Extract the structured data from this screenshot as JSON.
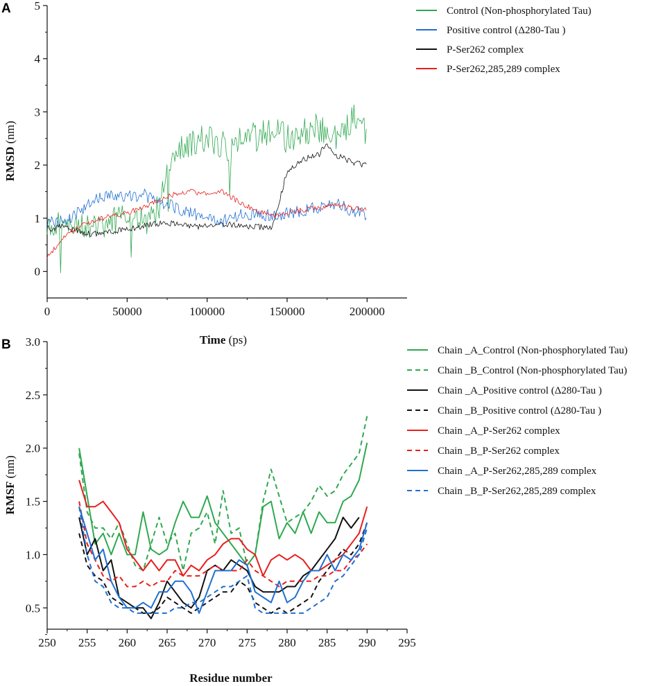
{
  "chart_data": [
    {
      "panel": "A",
      "type": "line",
      "xlabel_bold": "Time",
      "xlabel_unit": " (ps)",
      "ylabel_bold": "RMSD",
      "ylabel_unit": " (nm)",
      "xlim": [
        0,
        225000
      ],
      "ylim": [
        -0.5,
        5
      ],
      "xticks": [
        0,
        50000,
        100000,
        150000,
        200000
      ],
      "yticks": [
        0,
        1,
        2,
        3,
        4,
        5
      ],
      "series": [
        {
          "name": "Control (Non-phosphorylated Tau)",
          "color": "#2fa84f",
          "style": "solid",
          "x": [
            0,
            5000,
            10000,
            20000,
            30000,
            40000,
            50000,
            60000,
            65000,
            70000,
            75000,
            80000,
            90000,
            100000,
            110000,
            115000,
            120000,
            125000,
            130000,
            140000,
            150000,
            160000,
            170000,
            180000,
            190000,
            195000,
            200000
          ],
          "y": [
            0.9,
            0.95,
            1.0,
            0.9,
            0.85,
            0.95,
            1.05,
            0.95,
            1.0,
            1.2,
            2.0,
            2.2,
            2.4,
            2.5,
            2.4,
            2.2,
            2.6,
            2.7,
            2.5,
            2.7,
            2.5,
            2.6,
            2.7,
            2.5,
            2.8,
            3.0,
            2.5
          ]
        },
        {
          "name": "Positive control (Δ280-Tau )",
          "color": "#1f6fd1",
          "style": "solid",
          "x": [
            0,
            10000,
            20000,
            30000,
            40000,
            50000,
            60000,
            70000,
            80000,
            90000,
            100000,
            110000,
            120000,
            130000,
            140000,
            150000,
            160000,
            170000,
            180000,
            190000,
            200000
          ],
          "y": [
            0.9,
            0.95,
            1.1,
            1.35,
            1.45,
            1.4,
            1.45,
            1.3,
            1.2,
            1.1,
            1.0,
            0.95,
            1.05,
            1.1,
            1.05,
            1.1,
            1.15,
            1.2,
            1.3,
            1.15,
            1.05
          ]
        },
        {
          "name": "P-Ser262 complex",
          "color": "#111111",
          "style": "solid",
          "x": [
            0,
            10000,
            20000,
            30000,
            40000,
            50000,
            60000,
            70000,
            80000,
            90000,
            100000,
            110000,
            120000,
            130000,
            140000,
            145000,
            150000,
            160000,
            170000,
            175000,
            180000,
            190000,
            200000
          ],
          "y": [
            0.8,
            0.85,
            0.75,
            0.7,
            0.75,
            0.8,
            0.85,
            0.9,
            0.9,
            0.85,
            0.85,
            0.9,
            0.85,
            0.85,
            0.8,
            1.3,
            1.9,
            2.1,
            2.2,
            2.4,
            2.2,
            2.05,
            2.0
          ]
        },
        {
          "name": "P-Ser262,285,289 complex",
          "color": "#e81e1e",
          "style": "solid",
          "x": [
            0,
            5000,
            10000,
            20000,
            30000,
            40000,
            50000,
            60000,
            70000,
            80000,
            90000,
            100000,
            110000,
            120000,
            130000,
            140000,
            150000,
            160000,
            170000,
            180000,
            190000,
            200000
          ],
          "y": [
            0.25,
            0.45,
            0.65,
            0.85,
            0.95,
            1.05,
            1.1,
            1.2,
            1.35,
            1.45,
            1.5,
            1.45,
            1.5,
            1.3,
            1.15,
            1.05,
            1.1,
            1.15,
            1.2,
            1.25,
            1.2,
            1.15
          ]
        }
      ]
    },
    {
      "panel": "B",
      "type": "line",
      "xlabel": "Residue number",
      "ylabel_bold": "RMSF",
      "ylabel_unit": " (nm)",
      "xlim": [
        250,
        295
      ],
      "ylim": [
        0.3,
        3.0
      ],
      "xticks": [
        250,
        255,
        260,
        265,
        270,
        275,
        280,
        285,
        290,
        295
      ],
      "yticks": [
        0.5,
        1.0,
        1.5,
        2.0,
        2.5,
        3.0
      ],
      "ytick_labels": [
        "0.5",
        "1.0",
        "1.5",
        "2.0",
        "2.5",
        "3.0"
      ],
      "series": [
        {
          "name": "Chain _A_Control (Non-phosphorylated Tau)",
          "color": "#2fa84f",
          "style": "solid",
          "x": [
            254,
            255,
            256,
            257,
            258,
            259,
            260,
            261,
            262,
            263,
            264,
            265,
            266,
            267,
            268,
            269,
            270,
            271,
            272,
            273,
            274,
            275,
            276,
            277,
            278,
            279,
            280,
            281,
            282,
            283,
            284,
            285,
            286,
            287,
            288,
            289,
            290
          ],
          "y": [
            2.0,
            1.55,
            1.1,
            1.2,
            1.0,
            1.2,
            1.0,
            1.0,
            1.4,
            1.05,
            1.0,
            1.05,
            1.3,
            1.5,
            1.35,
            1.35,
            1.55,
            1.3,
            1.2,
            1.1,
            1.0,
            0.9,
            1.0,
            1.45,
            1.5,
            1.15,
            1.3,
            1.2,
            1.4,
            1.2,
            1.4,
            1.3,
            1.3,
            1.5,
            1.55,
            1.7,
            2.05
          ]
        },
        {
          "name": "Chain _B_Control (Non-phosphorylated Tau)",
          "color": "#2fa84f",
          "style": "dashed",
          "x": [
            254,
            255,
            256,
            257,
            258,
            259,
            260,
            261,
            262,
            263,
            264,
            265,
            266,
            267,
            268,
            269,
            270,
            271,
            272,
            273,
            274,
            275,
            276,
            277,
            278,
            279,
            280,
            281,
            282,
            283,
            284,
            285,
            286,
            287,
            288,
            289,
            290
          ],
          "y": [
            1.95,
            1.4,
            1.25,
            1.25,
            1.15,
            1.3,
            1.1,
            0.9,
            0.85,
            1.1,
            1.35,
            1.1,
            1.2,
            0.85,
            1.2,
            1.25,
            1.4,
            1.1,
            1.6,
            1.2,
            1.25,
            0.9,
            1.0,
            1.5,
            1.8,
            1.55,
            1.3,
            1.35,
            1.4,
            1.5,
            1.65,
            1.55,
            1.6,
            1.75,
            1.85,
            1.95,
            2.3
          ]
        },
        {
          "name": "Chain _A_Positive control (Δ280-Tau )",
          "color": "#111111",
          "style": "solid",
          "x": [
            254,
            255,
            256,
            257,
            258,
            259,
            260,
            261,
            262,
            263,
            264,
            265,
            266,
            267,
            268,
            269,
            270,
            271,
            272,
            273,
            274,
            275,
            276,
            277,
            278,
            279,
            280,
            281,
            282,
            283,
            284,
            285,
            286,
            287,
            288,
            289
          ],
          "y": [
            1.35,
            1.0,
            1.15,
            0.85,
            0.95,
            0.6,
            0.55,
            0.5,
            0.5,
            0.4,
            0.55,
            0.75,
            0.65,
            0.55,
            0.5,
            0.6,
            0.85,
            0.9,
            0.85,
            0.95,
            0.9,
            0.85,
            0.7,
            0.65,
            0.65,
            0.65,
            0.7,
            0.7,
            0.8,
            0.85,
            0.95,
            1.05,
            1.15,
            1.35,
            1.25,
            1.35
          ]
        },
        {
          "name": "Chain _B_Positive control (Δ280-Tau )",
          "color": "#111111",
          "style": "dashed",
          "x": [
            254,
            255,
            256,
            257,
            258,
            259,
            260,
            261,
            262,
            263,
            264,
            265,
            266,
            267,
            268,
            269,
            270,
            271,
            272,
            273,
            274,
            275,
            276,
            277,
            278,
            279,
            280,
            281,
            282,
            283,
            284,
            285,
            286,
            287,
            288,
            289,
            290
          ],
          "y": [
            1.2,
            0.9,
            0.8,
            0.75,
            0.6,
            0.55,
            0.5,
            0.5,
            0.45,
            0.45,
            0.5,
            0.6,
            0.55,
            0.5,
            0.45,
            0.5,
            0.55,
            0.6,
            0.65,
            0.65,
            0.75,
            0.7,
            0.55,
            0.5,
            0.45,
            0.5,
            0.45,
            0.5,
            0.55,
            0.6,
            0.75,
            0.85,
            0.95,
            1.05,
            1.0,
            1.1,
            1.3
          ]
        },
        {
          "name": "Chain _A_P-Ser262 complex",
          "color": "#e81e1e",
          "style": "solid",
          "x": [
            254,
            255,
            256,
            257,
            258,
            259,
            260,
            261,
            262,
            263,
            264,
            265,
            266,
            267,
            268,
            269,
            270,
            271,
            272,
            273,
            274,
            275,
            276,
            277,
            278,
            279,
            280,
            281,
            282,
            283,
            284,
            285,
            286,
            287,
            288,
            289,
            290
          ],
          "y": [
            1.7,
            1.45,
            1.45,
            1.5,
            1.4,
            1.3,
            1.05,
            0.95,
            0.85,
            0.95,
            0.85,
            0.95,
            0.95,
            0.8,
            0.9,
            0.85,
            0.95,
            1.0,
            1.1,
            1.15,
            1.15,
            1.05,
            1.0,
            0.8,
            0.95,
            1.0,
            0.95,
            1.0,
            0.95,
            0.85,
            0.85,
            0.9,
            0.95,
            1.0,
            1.1,
            1.2,
            1.45
          ]
        },
        {
          "name": "Chain _B_P-Ser262 complex",
          "color": "#e81e1e",
          "style": "dashed",
          "x": [
            254,
            255,
            256,
            257,
            258,
            259,
            260,
            261,
            262,
            263,
            264,
            265,
            266,
            267,
            268,
            269,
            270,
            271,
            272,
            273,
            274,
            275,
            276,
            277,
            278,
            279,
            280,
            281,
            282,
            283,
            284,
            285,
            286,
            287,
            288,
            289,
            290
          ],
          "y": [
            1.5,
            1.1,
            0.95,
            0.8,
            0.75,
            0.8,
            0.7,
            0.7,
            0.75,
            0.7,
            0.75,
            0.75,
            0.85,
            0.8,
            0.8,
            0.8,
            0.85,
            0.9,
            0.85,
            0.85,
            0.85,
            0.95,
            0.85,
            0.8,
            0.75,
            0.7,
            0.75,
            0.75,
            0.75,
            0.75,
            0.8,
            0.8,
            0.85,
            0.85,
            0.95,
            1.0,
            1.1
          ]
        },
        {
          "name": "Chain _A_P-Ser262,285,289 complex",
          "color": "#1f6fd1",
          "style": "solid",
          "x": [
            254,
            255,
            256,
            257,
            258,
            259,
            260,
            261,
            262,
            263,
            264,
            265,
            266,
            267,
            268,
            269,
            270,
            271,
            272,
            273,
            274,
            275,
            276,
            277,
            278,
            279,
            280,
            281,
            282,
            283,
            284,
            285,
            286,
            287,
            288,
            289,
            290
          ],
          "y": [
            1.45,
            1.2,
            0.95,
            1.05,
            0.75,
            0.6,
            0.5,
            0.5,
            0.55,
            0.5,
            0.65,
            0.65,
            0.75,
            0.75,
            0.65,
            0.45,
            0.65,
            0.85,
            0.85,
            0.85,
            0.95,
            0.9,
            0.65,
            0.6,
            0.55,
            0.75,
            0.55,
            0.6,
            0.75,
            0.85,
            0.85,
            1.0,
            0.85,
            1.0,
            0.95,
            1.05,
            1.3
          ]
        },
        {
          "name": "Chain _B_P-Ser262,285,289 complex",
          "color": "#1f6fd1",
          "style": "dashed",
          "x": [
            254,
            255,
            256,
            257,
            258,
            259,
            260,
            261,
            262,
            263,
            264,
            265,
            266,
            267,
            268,
            269,
            270,
            271,
            272,
            273,
            274,
            275,
            276,
            277,
            278,
            279,
            280,
            281,
            282,
            283,
            284,
            285,
            286,
            287,
            288,
            289,
            290
          ],
          "y": [
            1.45,
            1.0,
            0.75,
            0.7,
            0.55,
            0.5,
            0.5,
            0.45,
            0.45,
            0.45,
            0.45,
            0.45,
            0.5,
            0.5,
            0.55,
            0.55,
            0.6,
            0.65,
            0.7,
            0.7,
            0.75,
            0.8,
            0.5,
            0.45,
            0.45,
            0.45,
            0.45,
            0.45,
            0.45,
            0.5,
            0.55,
            0.6,
            0.75,
            0.8,
            0.9,
            1.0,
            1.25
          ]
        }
      ]
    }
  ]
}
